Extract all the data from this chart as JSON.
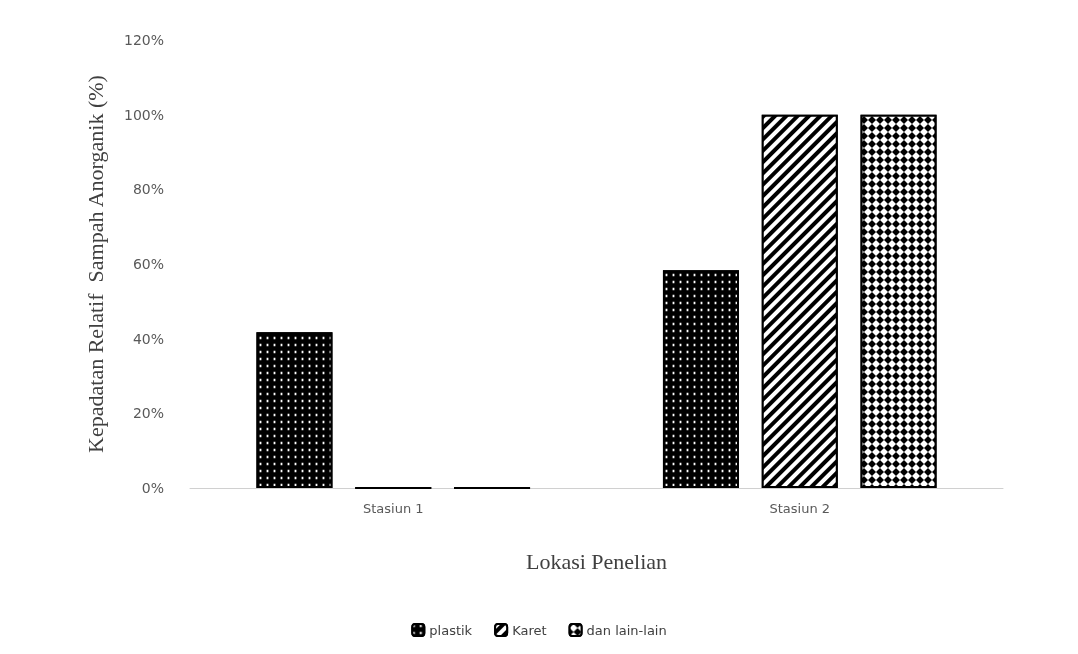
{
  "chart_data": {
    "type": "bar",
    "xlabel": "Lokasi Penelian",
    "ylabel": "Kepadatan Relatif  Sampah Anorganik (%)",
    "categories": [
      "Stasiun 1",
      "Stasiun 2"
    ],
    "series": [
      {
        "name": "plastik",
        "color": "#000000",
        "values": [
          41.7,
          58.3
        ]
      },
      {
        "name": "Karet",
        "color": "#000000",
        "values": [
          0,
          100
        ]
      },
      {
        "name": "dan lain-lain",
        "color": "#000000",
        "values": [
          0,
          100
        ]
      }
    ],
    "ylim": [
      0,
      120
    ],
    "yticks": [
      {
        "value": 0,
        "label": "0%"
      },
      {
        "value": 20,
        "label": "20%"
      },
      {
        "value": 40,
        "label": "40%"
      },
      {
        "value": 60,
        "label": "60%"
      },
      {
        "value": 80,
        "label": "80%"
      },
      {
        "value": 100,
        "label": "100%"
      },
      {
        "value": 120,
        "label": "120%"
      }
    ],
    "grid": false,
    "legend": "bottom"
  }
}
